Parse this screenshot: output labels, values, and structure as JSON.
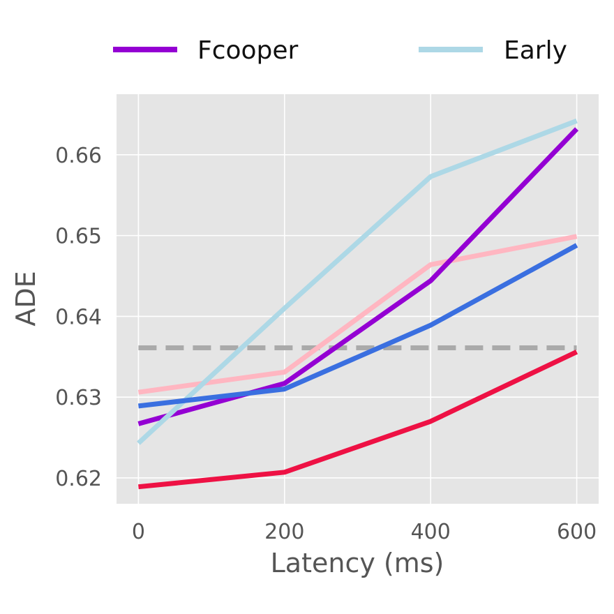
{
  "chart_data": {
    "type": "line",
    "xlabel": "Latency (ms)",
    "ylabel": "ADE",
    "x": [
      0,
      200,
      400,
      600
    ],
    "xticks": [
      "0",
      "200",
      "400",
      "600"
    ],
    "yticks": [
      "0.62",
      "0.63",
      "0.64",
      "0.65",
      "0.66"
    ],
    "xlim": [
      -30,
      630
    ],
    "ylim": [
      0.6168,
      0.6675
    ],
    "grid": true,
    "legend_placement": "top",
    "series": [
      {
        "name": "",
        "color": "#ffb6c1",
        "values": [
          0.6306,
          0.6331,
          0.6464,
          0.6499
        ]
      },
      {
        "name": "Fcooper",
        "color": "#9400d3",
        "values": [
          0.6267,
          0.6317,
          0.6444,
          0.6632
        ],
        "legend": true
      },
      {
        "name": "Early",
        "color": "#add8e6",
        "values": [
          0.6243,
          0.641,
          0.6573,
          0.6642
        ],
        "legend": true
      },
      {
        "name": "",
        "color": "#3a6fe0",
        "values": [
          0.6289,
          0.631,
          0.6389,
          0.6488
        ]
      },
      {
        "name": "",
        "color": "#ee1144",
        "values": [
          0.6189,
          0.6207,
          0.627,
          0.6356
        ]
      }
    ],
    "reference_line": {
      "value": 0.6361,
      "color": "#aaaaaa",
      "style": "dashed"
    },
    "legend": [
      {
        "label": "Fcooper",
        "color": "#9400d3"
      },
      {
        "label": "Early",
        "color": "#add8e6"
      }
    ],
    "plot_background": "#e5e5e5",
    "grid_color": "#ffffff"
  }
}
